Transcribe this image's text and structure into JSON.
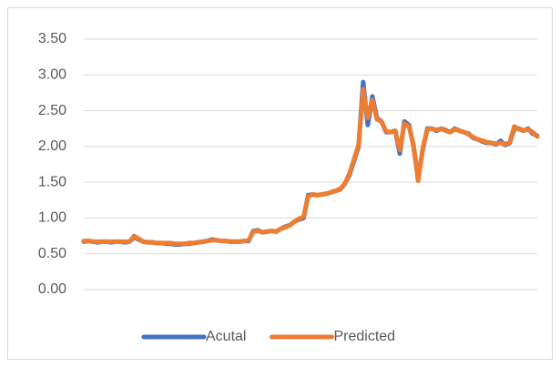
{
  "chart_data": {
    "type": "line",
    "categories": [
      null,
      null,
      null,
      null,
      null,
      null,
      null,
      null,
      null,
      null,
      null,
      null,
      null,
      null,
      null,
      null,
      null,
      null,
      null,
      null,
      null,
      null,
      null,
      null,
      null,
      null,
      null,
      null,
      null,
      null,
      null,
      null,
      null,
      null,
      null,
      null,
      null,
      null,
      null,
      null,
      null,
      null,
      null,
      null,
      null,
      null,
      null,
      null,
      null,
      null,
      null,
      null,
      null,
      null,
      null,
      null,
      null,
      null,
      null,
      null,
      null,
      null,
      null,
      null,
      null,
      null,
      null,
      null,
      null,
      null,
      null,
      null,
      null,
      null,
      null,
      null,
      null,
      null,
      null,
      null,
      null,
      null,
      null,
      null,
      null,
      null,
      null,
      null,
      null,
      null,
      null,
      null,
      null,
      null,
      null,
      null,
      null,
      null,
      null,
      null
    ],
    "series": [
      {
        "name": "Acutal",
        "color": "#4472c4",
        "values": [
          0.67,
          0.68,
          0.67,
          0.66,
          0.67,
          0.67,
          0.66,
          0.67,
          0.67,
          0.66,
          0.67,
          0.73,
          0.7,
          0.67,
          0.66,
          0.66,
          0.65,
          0.65,
          0.64,
          0.64,
          0.63,
          0.63,
          0.64,
          0.64,
          0.65,
          0.66,
          0.67,
          0.68,
          0.7,
          0.69,
          0.68,
          0.68,
          0.67,
          0.67,
          0.67,
          0.68,
          0.68,
          0.82,
          0.83,
          0.8,
          0.81,
          0.82,
          0.81,
          0.85,
          0.88,
          0.9,
          0.95,
          0.98,
          1.0,
          1.32,
          1.33,
          1.32,
          1.33,
          1.34,
          1.36,
          1.38,
          1.4,
          1.48,
          1.6,
          1.8,
          2.0,
          2.9,
          2.3,
          2.7,
          2.4,
          2.35,
          2.2,
          2.2,
          2.22,
          1.9,
          2.35,
          2.3,
          2.0,
          1.55,
          1.95,
          2.25,
          2.25,
          2.22,
          2.25,
          2.23,
          2.2,
          2.25,
          2.22,
          2.2,
          2.18,
          2.12,
          2.1,
          2.07,
          2.05,
          2.05,
          2.03,
          2.08,
          2.02,
          2.05,
          2.25,
          2.25,
          2.22,
          2.25,
          2.18,
          2.15
        ]
      },
      {
        "name": "Predicted",
        "color": "#ed7d31",
        "values": [
          0.68,
          0.68,
          0.67,
          0.67,
          0.67,
          0.67,
          0.67,
          0.67,
          0.67,
          0.67,
          0.67,
          0.75,
          0.71,
          0.67,
          0.66,
          0.66,
          0.65,
          0.65,
          0.65,
          0.65,
          0.64,
          0.64,
          0.64,
          0.65,
          0.65,
          0.66,
          0.67,
          0.68,
          0.69,
          0.69,
          0.68,
          0.68,
          0.67,
          0.67,
          0.67,
          0.68,
          0.69,
          0.81,
          0.82,
          0.8,
          0.81,
          0.82,
          0.81,
          0.85,
          0.87,
          0.9,
          0.95,
          0.99,
          1.02,
          1.3,
          1.33,
          1.32,
          1.33,
          1.34,
          1.36,
          1.38,
          1.41,
          1.48,
          1.62,
          1.82,
          2.02,
          2.8,
          2.4,
          2.65,
          2.38,
          2.35,
          2.21,
          2.2,
          2.22,
          1.95,
          2.32,
          2.28,
          2.02,
          1.52,
          1.97,
          2.24,
          2.25,
          2.23,
          2.25,
          2.22,
          2.2,
          2.24,
          2.22,
          2.2,
          2.17,
          2.13,
          2.1,
          2.08,
          2.06,
          2.05,
          2.04,
          2.05,
          2.03,
          2.06,
          2.28,
          2.24,
          2.22,
          2.24,
          2.2,
          2.14
        ]
      }
    ],
    "ylim": [
      0,
      3.5
    ],
    "yticks": [
      {
        "value": 0,
        "label": "0.00"
      },
      {
        "value": 0.5,
        "label": "0.50"
      },
      {
        "value": 1,
        "label": "1.00"
      },
      {
        "value": 1.5,
        "label": "1.50"
      },
      {
        "value": 2,
        "label": "2.00"
      },
      {
        "value": 2.5,
        "label": "2.50"
      },
      {
        "value": 3,
        "label": "3.00"
      },
      {
        "value": 3.5,
        "label": "3.50"
      }
    ],
    "grid": true,
    "legend": "bottom"
  }
}
